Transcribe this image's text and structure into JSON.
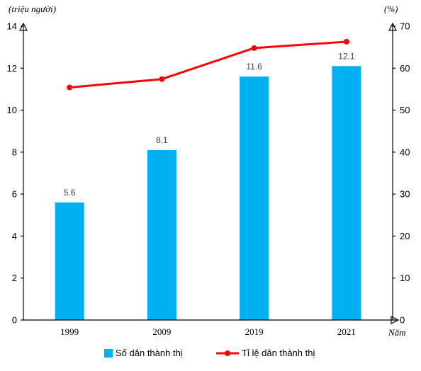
{
  "chart_data": {
    "type": "bar",
    "categories": [
      "1999",
      "2009",
      "2019",
      "2021"
    ],
    "series": [
      {
        "name": "Số dân thành thị",
        "type": "bar",
        "axis": "left",
        "color": "#00b0f0",
        "values": [
          5.6,
          8.1,
          11.6,
          12.1
        ],
        "data_labels": [
          "5.6",
          "8.1",
          "11.6",
          "12.1"
        ]
      },
      {
        "name": "Tỉ lệ dân thành thị",
        "type": "line",
        "axis": "right",
        "color": "#ff0000",
        "values": [
          55.4,
          57.4,
          64.8,
          66.3
        ]
      }
    ],
    "left_axis": {
      "unit": "(triệu người)",
      "ylim": [
        0,
        14
      ],
      "ticks": [
        "0",
        "2",
        "4",
        "6",
        "8",
        "10",
        "12",
        "14"
      ]
    },
    "right_axis": {
      "unit": "(%)",
      "ylim": [
        0,
        70
      ],
      "ticks": [
        "0",
        "10",
        "20",
        "30",
        "40",
        "50",
        "60",
        "70"
      ]
    },
    "x_axis": {
      "label": "Năm"
    },
    "legend_position": "bottom",
    "grid": false
  }
}
